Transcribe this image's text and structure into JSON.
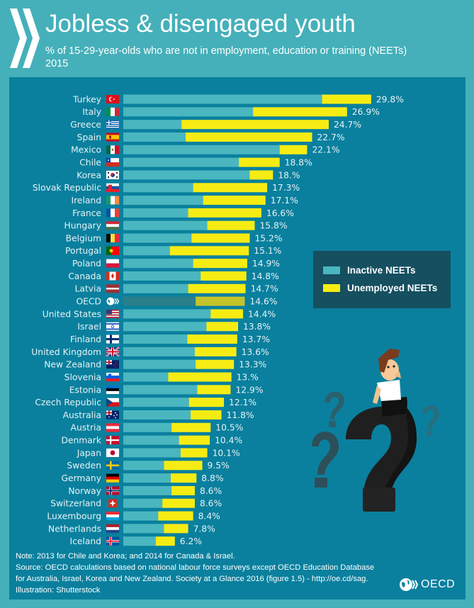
{
  "header": {
    "title": "Jobless & disengaged youth",
    "subtitle": "% of 15-29-year-olds who are not in employment, education or training (NEETs)",
    "year": "2015",
    "logo_icon": "oecd-chevrons-icon"
  },
  "legend": {
    "items": [
      {
        "label": "Inactive NEETs",
        "color": "#4ab6bf"
      },
      {
        "label": "Unemployed NEETs",
        "color": "#f6ec14"
      }
    ]
  },
  "colors": {
    "background": "#45b0ba",
    "panel": "#0a809e",
    "inactive": "#4ab6bf",
    "unemployed": "#f6ec14",
    "oecd_inactive": "#2a7f8a",
    "oecd_unemployed": "#c4c42a"
  },
  "chart_data": {
    "type": "bar",
    "orientation": "horizontal",
    "stacked": true,
    "title": "Jobless & disengaged youth",
    "subtitle": "% of 15-29-year-olds who are not in employment, education or training (NEETs), 2015",
    "xlabel": "",
    "ylabel": "",
    "xlim": [
      0,
      30
    ],
    "grid": false,
    "legend_position": "right",
    "categories": [
      "Turkey",
      "Italy",
      "Greece",
      "Spain",
      "Mexico",
      "Chile",
      "Korea",
      "Slovak Republic",
      "Ireland",
      "France",
      "Hungary",
      "Belgium",
      "Portugal",
      "Poland",
      "Canada",
      "Latvia",
      "OECD",
      "United States",
      "Israel",
      "Finland",
      "United Kingdom",
      "New Zealand",
      "Slovenia",
      "Estonia",
      "Czech Republic",
      "Australia",
      "Austria",
      "Denmark",
      "Japan",
      "Sweden",
      "Germany",
      "Norway",
      "Switzerland",
      "Luxembourg",
      "Netherlands",
      "Iceland"
    ],
    "flags": [
      "turkey",
      "italy",
      "greece",
      "spain",
      "mexico",
      "chile",
      "korea",
      "slovakia",
      "ireland",
      "france",
      "hungary",
      "belgium",
      "portugal",
      "poland",
      "canada",
      "latvia",
      "oecd",
      "usa",
      "israel",
      "finland",
      "uk",
      "newzealand",
      "slovenia",
      "estonia",
      "czech",
      "australia",
      "austria",
      "denmark",
      "japan",
      "sweden",
      "germany",
      "norway",
      "switzerland",
      "luxembourg",
      "netherlands",
      "iceland"
    ],
    "series": [
      {
        "name": "Inactive NEETs",
        "values": [
          23.9,
          15.6,
          7.0,
          7.5,
          18.8,
          13.9,
          15.2,
          8.4,
          9.6,
          7.8,
          10.1,
          8.2,
          5.6,
          8.4,
          9.3,
          7.8,
          8.7,
          10.5,
          10.0,
          7.7,
          8.6,
          8.7,
          5.4,
          8.9,
          7.9,
          8.1,
          5.8,
          6.7,
          6.9,
          4.9,
          5.7,
          5.8,
          4.7,
          4.2,
          4.9,
          3.9
        ]
      },
      {
        "name": "Unemployed NEETs",
        "values": [
          5.9,
          11.3,
          17.7,
          15.2,
          3.3,
          4.9,
          2.8,
          8.9,
          7.5,
          8.8,
          5.7,
          7.0,
          9.5,
          6.5,
          5.5,
          6.9,
          5.9,
          3.9,
          3.8,
          6.0,
          5.0,
          4.6,
          7.6,
          4.0,
          4.2,
          3.7,
          4.7,
          3.7,
          3.2,
          4.6,
          3.1,
          2.8,
          3.9,
          4.2,
          2.9,
          2.3
        ]
      }
    ],
    "totals": [
      29.8,
      26.9,
      24.7,
      22.7,
      22.1,
      18.8,
      18.0,
      17.3,
      17.1,
      16.6,
      15.8,
      15.2,
      15.1,
      14.9,
      14.8,
      14.7,
      14.6,
      14.4,
      13.8,
      13.7,
      13.6,
      13.3,
      13.0,
      12.9,
      12.1,
      11.8,
      10.5,
      10.4,
      10.1,
      9.5,
      8.8,
      8.6,
      8.6,
      8.4,
      7.8,
      6.2
    ],
    "value_labels": [
      "29.8%",
      "26.9%",
      "24.7%",
      "22.7%",
      "22.1%",
      "18.8%",
      "18.%",
      "17.3%",
      "17.1%",
      "16.6%",
      "15.8%",
      "15.2%",
      "15.1%",
      "14.9%",
      "14.8%",
      "14.7%",
      "14.6%",
      "14.4%",
      "13.8%",
      "13.7%",
      "13.6%",
      "13.3%",
      "13.%",
      "12.9%",
      "12.1%",
      "11.8%",
      "10.5%",
      "10.4%",
      "10.1%",
      "9.5%",
      "8.8%",
      "8.6%",
      "8.6%",
      "8.4%",
      "7.8%",
      "6.2%"
    ],
    "highlight": "OECD"
  },
  "footer": {
    "note": "Note: 2013 for Chile and Korea; and 2014 for Canada & Israel.",
    "source_line1": "Source: OECD calculations based on national labour force surveys except OECD Education Database",
    "source_line2": "for Australia, Israel, Korea and New Zealand. Society at a Glance 2016 (figure 1.5) - http://oe.cd/sag.",
    "illustration": "Illustration: Shutterstock",
    "logo_text": "OECD"
  },
  "illustration": {
    "description": "man-sitting-on-question-mark",
    "icon": "question-mark-illustration"
  }
}
